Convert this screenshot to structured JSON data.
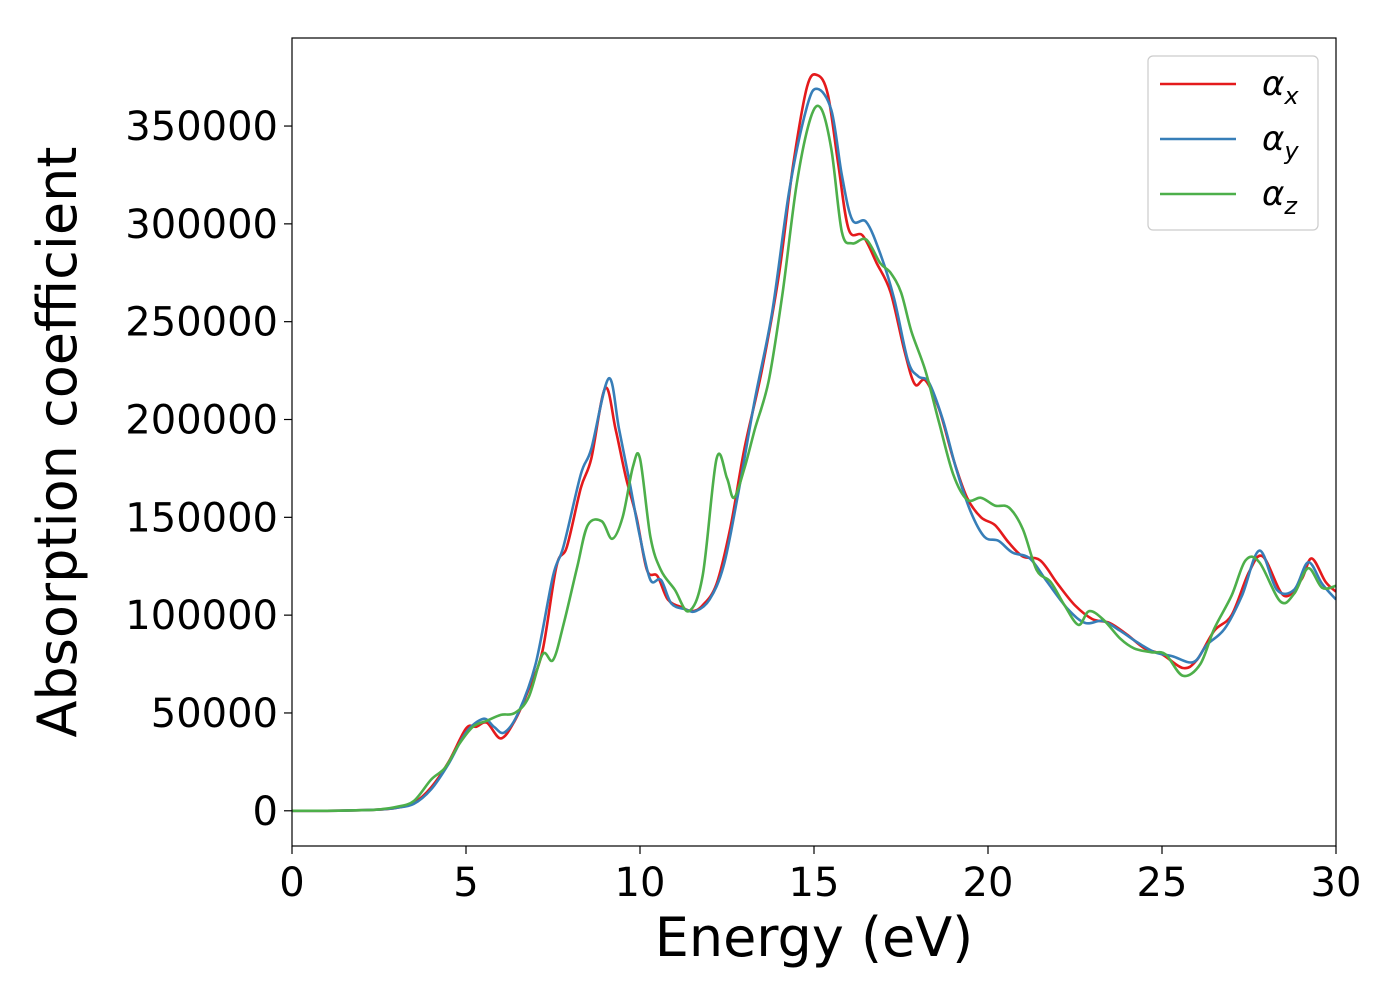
{
  "chart_data": {
    "type": "line",
    "title": "",
    "xlabel": "Energy (eV)",
    "ylabel": "Absorption coefficient",
    "xlim": [
      0,
      30
    ],
    "ylim": [
      -18000,
      395000
    ],
    "xticks": [
      0,
      5,
      10,
      15,
      20,
      25,
      30
    ],
    "yticks": [
      0,
      50000,
      100000,
      150000,
      200000,
      250000,
      300000,
      350000
    ],
    "grid": false,
    "legend_position": "top-right",
    "series": [
      {
        "name": "αx",
        "symbol": "α",
        "subscript": "x",
        "color": "#e41a1c",
        "points": [
          [
            0,
            0
          ],
          [
            1,
            0
          ],
          [
            2,
            300
          ],
          [
            2.5,
            600
          ],
          [
            3,
            1500
          ],
          [
            3.5,
            4000
          ],
          [
            4,
            12000
          ],
          [
            4.5,
            25000
          ],
          [
            5,
            42000
          ],
          [
            5.3,
            43000
          ],
          [
            5.6,
            45000
          ],
          [
            6,
            37000
          ],
          [
            6.4,
            46000
          ],
          [
            6.8,
            62000
          ],
          [
            7.2,
            82000
          ],
          [
            7.6,
            125000
          ],
          [
            7.9,
            135000
          ],
          [
            8.3,
            165000
          ],
          [
            8.6,
            180000
          ],
          [
            9,
            216000
          ],
          [
            9.3,
            195000
          ],
          [
            9.6,
            170000
          ],
          [
            9.9,
            150000
          ],
          [
            10.2,
            123000
          ],
          [
            10.5,
            120000
          ],
          [
            10.8,
            108000
          ],
          [
            11.2,
            104000
          ],
          [
            11.5,
            102000
          ],
          [
            11.8,
            105000
          ],
          [
            12.2,
            116000
          ],
          [
            12.6,
            145000
          ],
          [
            13,
            185000
          ],
          [
            13.5,
            225000
          ],
          [
            14,
            275000
          ],
          [
            14.4,
            330000
          ],
          [
            14.8,
            370000
          ],
          [
            15.1,
            376000
          ],
          [
            15.4,
            366000
          ],
          [
            15.7,
            330000
          ],
          [
            16,
            297000
          ],
          [
            16.4,
            294000
          ],
          [
            16.8,
            280000
          ],
          [
            17.2,
            265000
          ],
          [
            17.6,
            235000
          ],
          [
            17.9,
            218000
          ],
          [
            18.2,
            220000
          ],
          [
            18.6,
            205000
          ],
          [
            19,
            180000
          ],
          [
            19.4,
            160000
          ],
          [
            19.8,
            150000
          ],
          [
            20.2,
            146000
          ],
          [
            20.6,
            137000
          ],
          [
            21,
            130000
          ],
          [
            21.5,
            128000
          ],
          [
            22,
            116000
          ],
          [
            22.5,
            105000
          ],
          [
            23,
            98000
          ],
          [
            23.5,
            96000
          ],
          [
            24,
            90000
          ],
          [
            24.5,
            83000
          ],
          [
            25,
            80000
          ],
          [
            25.6,
            73000
          ],
          [
            26,
            77000
          ],
          [
            26.5,
            92000
          ],
          [
            27,
            100000
          ],
          [
            27.5,
            122000
          ],
          [
            27.9,
            130000
          ],
          [
            28.5,
            110000
          ],
          [
            29,
            118000
          ],
          [
            29.3,
            129000
          ],
          [
            29.7,
            117000
          ],
          [
            30,
            112000
          ]
        ]
      },
      {
        "name": "αy",
        "symbol": "α",
        "subscript": "y",
        "color": "#377eb8",
        "points": [
          [
            0,
            0
          ],
          [
            1,
            0
          ],
          [
            2,
            300
          ],
          [
            2.5,
            600
          ],
          [
            3,
            1500
          ],
          [
            3.5,
            3500
          ],
          [
            4,
            11000
          ],
          [
            4.5,
            24000
          ],
          [
            5,
            40000
          ],
          [
            5.5,
            47000
          ],
          [
            5.8,
            43000
          ],
          [
            6.1,
            40000
          ],
          [
            6.5,
            50000
          ],
          [
            7,
            75000
          ],
          [
            7.5,
            120000
          ],
          [
            7.8,
            135000
          ],
          [
            8.3,
            172000
          ],
          [
            8.6,
            185000
          ],
          [
            9.1,
            221000
          ],
          [
            9.4,
            195000
          ],
          [
            9.7,
            168000
          ],
          [
            10,
            140000
          ],
          [
            10.3,
            118000
          ],
          [
            10.6,
            118000
          ],
          [
            10.9,
            106000
          ],
          [
            11.3,
            103000
          ],
          [
            11.6,
            102000
          ],
          [
            12,
            108000
          ],
          [
            12.4,
            125000
          ],
          [
            12.8,
            160000
          ],
          [
            13.3,
            210000
          ],
          [
            13.8,
            255000
          ],
          [
            14.3,
            318000
          ],
          [
            14.8,
            360000
          ],
          [
            15.1,
            369000
          ],
          [
            15.5,
            358000
          ],
          [
            15.8,
            325000
          ],
          [
            16.1,
            302000
          ],
          [
            16.5,
            301000
          ],
          [
            16.9,
            285000
          ],
          [
            17.3,
            262000
          ],
          [
            17.7,
            230000
          ],
          [
            18,
            222000
          ],
          [
            18.3,
            219000
          ],
          [
            18.7,
            200000
          ],
          [
            19.1,
            174000
          ],
          [
            19.5,
            153000
          ],
          [
            19.9,
            140000
          ],
          [
            20.3,
            138000
          ],
          [
            20.7,
            132000
          ],
          [
            21.2,
            129000
          ],
          [
            21.7,
            117000
          ],
          [
            22.3,
            103000
          ],
          [
            22.8,
            96000
          ],
          [
            23.3,
            97000
          ],
          [
            23.8,
            92000
          ],
          [
            24.3,
            86000
          ],
          [
            24.8,
            81000
          ],
          [
            25.3,
            79000
          ],
          [
            25.9,
            76000
          ],
          [
            26.3,
            85000
          ],
          [
            26.8,
            93000
          ],
          [
            27.3,
            110000
          ],
          [
            27.8,
            133000
          ],
          [
            28.3,
            113000
          ],
          [
            28.8,
            113000
          ],
          [
            29.2,
            127000
          ],
          [
            29.6,
            116000
          ],
          [
            30,
            108000
          ]
        ]
      },
      {
        "name": "αz",
        "symbol": "α",
        "subscript": "z",
        "color": "#4daf4a",
        "points": [
          [
            0,
            0
          ],
          [
            1,
            0
          ],
          [
            2,
            300
          ],
          [
            2.5,
            700
          ],
          [
            3,
            2000
          ],
          [
            3.5,
            5000
          ],
          [
            4,
            16000
          ],
          [
            4.4,
            22000
          ],
          [
            4.8,
            34000
          ],
          [
            5.2,
            43000
          ],
          [
            5.6,
            46000
          ],
          [
            6,
            49000
          ],
          [
            6.4,
            50000
          ],
          [
            6.8,
            58000
          ],
          [
            7.2,
            80000
          ],
          [
            7.5,
            77000
          ],
          [
            7.8,
            95000
          ],
          [
            8.2,
            125000
          ],
          [
            8.5,
            146000
          ],
          [
            8.9,
            148000
          ],
          [
            9.2,
            139000
          ],
          [
            9.5,
            150000
          ],
          [
            9.8,
            176000
          ],
          [
            10,
            180000
          ],
          [
            10.3,
            140000
          ],
          [
            10.6,
            123000
          ],
          [
            11,
            113000
          ],
          [
            11.4,
            102000
          ],
          [
            11.8,
            120000
          ],
          [
            12.2,
            180000
          ],
          [
            12.5,
            170000
          ],
          [
            12.7,
            160000
          ],
          [
            13,
            175000
          ],
          [
            13.3,
            195000
          ],
          [
            13.7,
            220000
          ],
          [
            14.1,
            265000
          ],
          [
            14.5,
            320000
          ],
          [
            14.9,
            354000
          ],
          [
            15.2,
            359000
          ],
          [
            15.5,
            338000
          ],
          [
            15.8,
            296000
          ],
          [
            16.1,
            290000
          ],
          [
            16.5,
            292000
          ],
          [
            16.9,
            280000
          ],
          [
            17.2,
            275000
          ],
          [
            17.5,
            265000
          ],
          [
            17.8,
            245000
          ],
          [
            18.2,
            225000
          ],
          [
            18.6,
            198000
          ],
          [
            19,
            172000
          ],
          [
            19.4,
            159000
          ],
          [
            19.8,
            160000
          ],
          [
            20.2,
            156000
          ],
          [
            20.6,
            155000
          ],
          [
            21,
            144000
          ],
          [
            21.4,
            123000
          ],
          [
            21.8,
            117000
          ],
          [
            22.2,
            105000
          ],
          [
            22.6,
            95000
          ],
          [
            22.9,
            102000
          ],
          [
            23.3,
            98000
          ],
          [
            23.8,
            88000
          ],
          [
            24.2,
            83000
          ],
          [
            24.7,
            81000
          ],
          [
            25.1,
            80000
          ],
          [
            25.6,
            69000
          ],
          [
            26.1,
            75000
          ],
          [
            26.5,
            93000
          ],
          [
            27,
            110000
          ],
          [
            27.4,
            128000
          ],
          [
            27.8,
            127000
          ],
          [
            28.4,
            107000
          ],
          [
            28.8,
            111000
          ],
          [
            29.2,
            124000
          ],
          [
            29.6,
            114000
          ],
          [
            30,
            115000
          ]
        ]
      }
    ]
  }
}
